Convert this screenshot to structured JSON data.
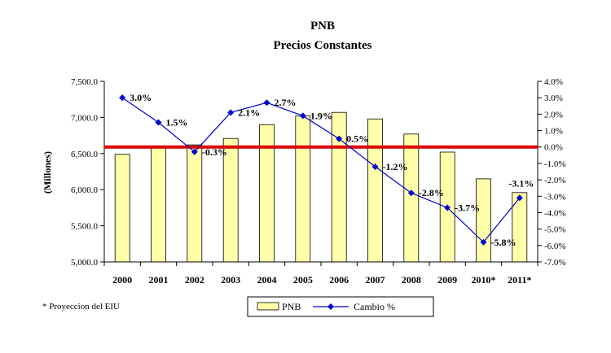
{
  "chart_data": {
    "type": "bar+line",
    "title": "PNB",
    "subtitle": "Precios Constantes",
    "ylabel": "(Millones)",
    "footnote": "* Proyeccion del EIU",
    "categories": [
      "2000",
      "2001",
      "2002",
      "2003",
      "2004",
      "2005",
      "2006",
      "2007",
      "2008",
      "2009",
      "2010*",
      "2011*"
    ],
    "series": [
      {
        "name": "PNB",
        "type": "bar",
        "axis": "left",
        "color": "#FFFFAA",
        "values": [
          6490,
          6600,
          6620,
          6710,
          6900,
          7020,
          7070,
          6980,
          6770,
          6520,
          6150,
          5960
        ]
      },
      {
        "name": "Cambio %",
        "type": "line",
        "axis": "right",
        "color": "#0000CC",
        "values": [
          3.0,
          1.5,
          -0.3,
          2.1,
          2.7,
          1.9,
          0.5,
          -1.2,
          -2.8,
          -3.7,
          -5.8,
          -3.1
        ],
        "labels": [
          "3.0%",
          "1.5%",
          "-0.3%",
          "2.1%",
          "2.7%",
          "1.9%",
          "0.5%",
          "-1.2%",
          "-2.8%",
          "-3.7%",
          "-5.8%",
          "-3.1%"
        ]
      }
    ],
    "y_left": {
      "min": 5000,
      "max": 7500,
      "ticks": [
        5000,
        5500,
        6000,
        6500,
        7000,
        7500
      ],
      "tick_labels": [
        "5,000.0",
        "5,500.0",
        "6,000.0",
        "6,500.0",
        "7,000.0",
        "7,500.0"
      ]
    },
    "y_right": {
      "min": -7,
      "max": 4,
      "ticks": [
        4,
        3,
        2,
        1,
        0,
        -1,
        -2,
        -3,
        -4,
        -5,
        -6,
        -7
      ],
      "tick_labels": [
        "4.0%",
        "3.0%",
        "2.0%",
        "1.0%",
        "0.0%",
        "-1.0%",
        "-2.0%",
        "-3.0%",
        "-4.0%",
        "-5.0%",
        "-6.0%",
        "-7.0%"
      ]
    },
    "reference_line": {
      "axis": "right",
      "value": 0,
      "color": "#DD0000"
    },
    "legend": {
      "position": "bottom-center",
      "entries": [
        "PNB",
        "Cambio %"
      ]
    }
  }
}
